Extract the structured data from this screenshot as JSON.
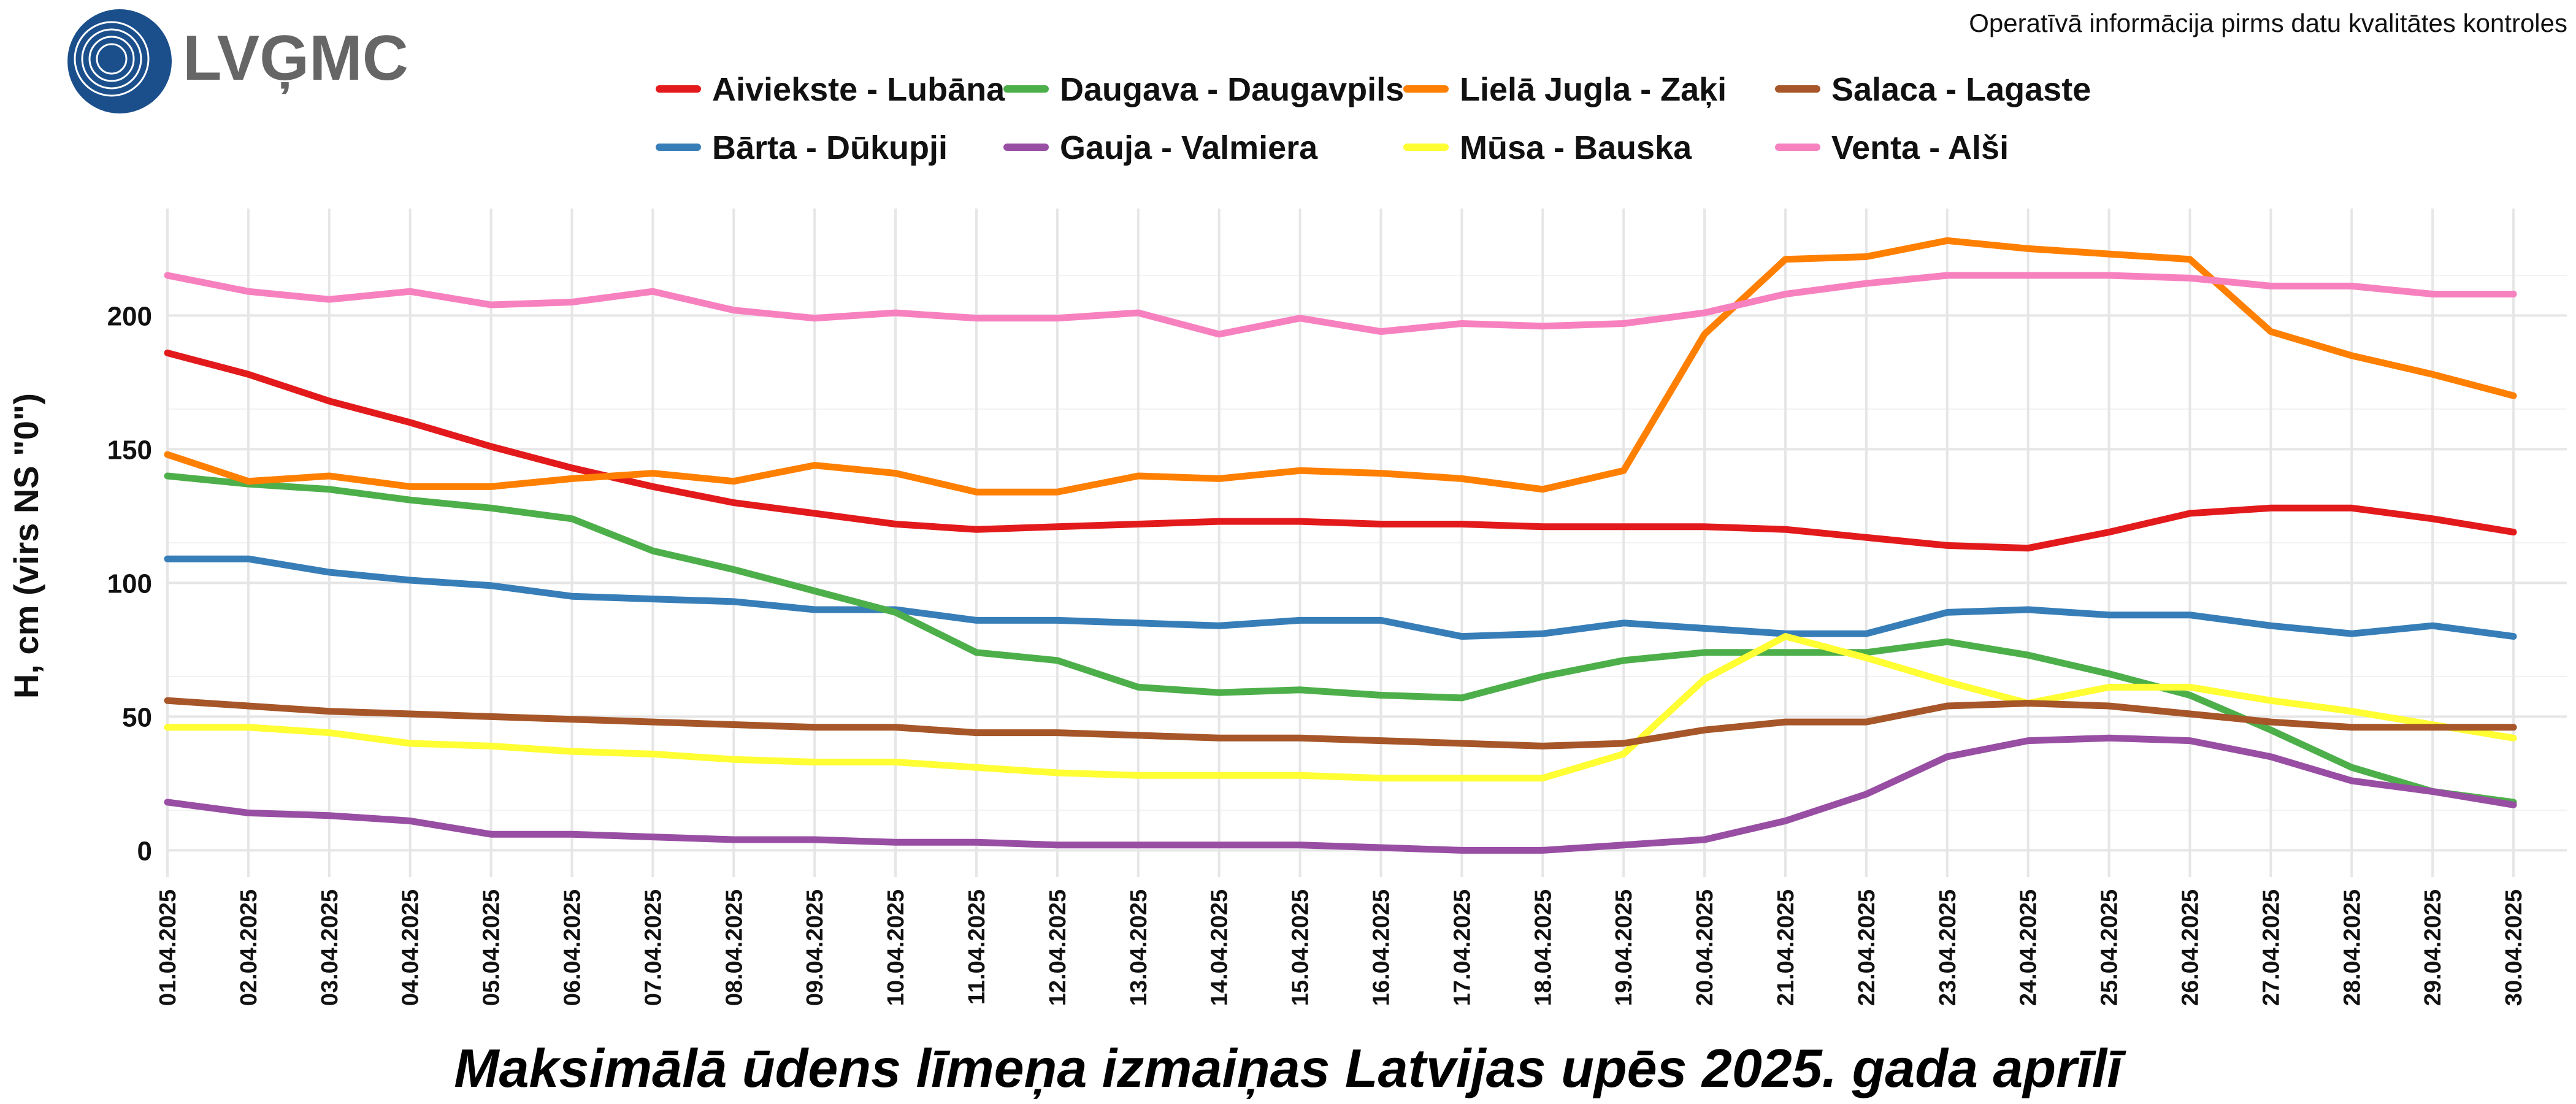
{
  "header": {
    "logo_text": "LVĢMC",
    "notice": "Operatīvā informācija pirms datu kvalitātes kontroles"
  },
  "colors": {
    "logo_circle": "#1b4f8c",
    "logo_text": "#666666",
    "grid": "#e6e6e6"
  },
  "chart_data": {
    "type": "line",
    "title": "Maksimālā ūdens līmeņa izmaiņas Latvijas upēs 2025. gada aprīlī",
    "xlabel": "",
    "ylabel": "H, cm (virs NS \"0\")",
    "ylim": [
      -10,
      240
    ],
    "yticks": [
      0,
      50,
      100,
      150,
      200
    ],
    "grid": true,
    "legend_position": "top",
    "categories": [
      "01.04.2025",
      "02.04.2025",
      "03.04.2025",
      "04.04.2025",
      "05.04.2025",
      "06.04.2025",
      "07.04.2025",
      "08.04.2025",
      "09.04.2025",
      "10.04.2025",
      "11.04.2025",
      "12.04.2025",
      "13.04.2025",
      "14.04.2025",
      "15.04.2025",
      "16.04.2025",
      "17.04.2025",
      "18.04.2025",
      "19.04.2025",
      "20.04.2025",
      "21.04.2025",
      "22.04.2025",
      "23.04.2025",
      "24.04.2025",
      "25.04.2025",
      "26.04.2025",
      "27.04.2025",
      "28.04.2025",
      "29.04.2025",
      "30.04.2025"
    ],
    "series": [
      {
        "name": "Aiviekste - Lubāna",
        "color": "#e31a1c",
        "values": [
          186,
          178,
          168,
          160,
          151,
          143,
          136,
          130,
          126,
          122,
          120,
          121,
          122,
          123,
          123,
          122,
          122,
          121,
          121,
          121,
          120,
          117,
          114,
          113,
          119,
          126,
          128,
          128,
          124,
          119
        ]
      },
      {
        "name": "Bārta - Dūkupji",
        "color": "#377eb8",
        "values": [
          109,
          109,
          104,
          101,
          99,
          95,
          94,
          93,
          90,
          90,
          86,
          86,
          85,
          84,
          86,
          86,
          80,
          81,
          85,
          83,
          81,
          81,
          89,
          90,
          88,
          88,
          84,
          81,
          84,
          80
        ]
      },
      {
        "name": "Daugava - Daugavpils",
        "color": "#4daf4a",
        "values": [
          140,
          137,
          135,
          131,
          128,
          124,
          112,
          105,
          97,
          89,
          74,
          71,
          61,
          59,
          60,
          58,
          57,
          65,
          71,
          74,
          74,
          74,
          78,
          73,
          66,
          58,
          45,
          31,
          22,
          18
        ]
      },
      {
        "name": "Gauja - Valmiera",
        "color": "#984ea3",
        "values": [
          18,
          14,
          13,
          11,
          6,
          6,
          5,
          4,
          4,
          3,
          3,
          2,
          2,
          2,
          2,
          1,
          0,
          0,
          2,
          4,
          11,
          21,
          35,
          41,
          42,
          41,
          35,
          26,
          22,
          17
        ]
      },
      {
        "name": "Lielā Jugla - Zaķi",
        "color": "#ff7f00",
        "values": [
          148,
          138,
          140,
          136,
          136,
          139,
          141,
          138,
          144,
          141,
          134,
          134,
          140,
          139,
          142,
          141,
          139,
          135,
          142,
          193,
          221,
          222,
          228,
          225,
          223,
          221,
          194,
          185,
          178,
          170
        ]
      },
      {
        "name": "Mūsa - Bauska",
        "color": "#ffff33",
        "values": [
          46,
          46,
          44,
          40,
          39,
          37,
          36,
          34,
          33,
          33,
          31,
          29,
          28,
          28,
          28,
          27,
          27,
          27,
          36,
          64,
          80,
          72,
          63,
          55,
          61,
          61,
          56,
          52,
          47,
          42
        ]
      },
      {
        "name": "Salaca - Lagaste",
        "color": "#a65628",
        "values": [
          56,
          54,
          52,
          51,
          50,
          49,
          48,
          47,
          46,
          46,
          44,
          44,
          43,
          42,
          42,
          41,
          40,
          39,
          40,
          45,
          48,
          48,
          54,
          55,
          54,
          51,
          48,
          46,
          46,
          46
        ]
      },
      {
        "name": "Venta - Alši",
        "color": "#f781bf",
        "values": [
          215,
          209,
          206,
          209,
          204,
          205,
          209,
          202,
          199,
          201,
          199,
          199,
          201,
          193,
          199,
          194,
          197,
          196,
          197,
          201,
          208,
          212,
          215,
          215,
          215,
          214,
          211,
          211,
          208,
          208
        ]
      }
    ]
  }
}
